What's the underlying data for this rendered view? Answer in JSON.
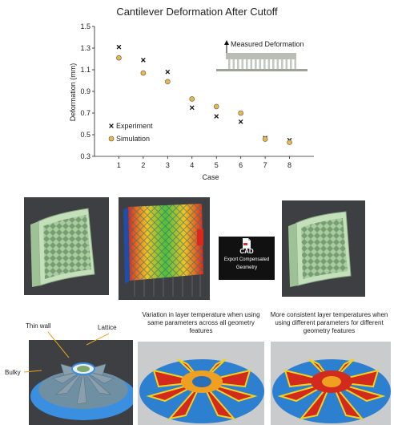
{
  "chart_data": {
    "type": "scatter",
    "title": "Cantilever Deformation After Cutoff",
    "xlabel": "Case",
    "ylabel": "Deformation (mm)",
    "x": [
      1,
      2,
      3,
      4,
      5,
      6,
      7,
      8
    ],
    "xticks": [
      "1",
      "2",
      "3",
      "4",
      "5",
      "6",
      "7",
      "8"
    ],
    "yticks": [
      "0.3",
      "0.5",
      "0.7",
      "0.9",
      "1.1",
      "1.3",
      "1.5"
    ],
    "ylim": [
      0.3,
      1.5
    ],
    "series": [
      {
        "name": "Experiment",
        "marker": "x",
        "color": "#111111",
        "values": [
          1.31,
          1.19,
          1.08,
          0.75,
          0.67,
          0.62,
          0.47,
          0.45
        ]
      },
      {
        "name": "Simulation",
        "marker": "circle",
        "color": "#E8B84A",
        "values": [
          1.21,
          1.07,
          0.99,
          0.83,
          0.76,
          0.7,
          0.46,
          0.43
        ]
      }
    ],
    "legend_position": "bottom-left",
    "annotation": "Measured Deformation"
  },
  "cad_badge": {
    "label": "CAD",
    "caption_line1": "Export Compensated",
    "caption_line2": "Geometry"
  },
  "bottom_panels": {
    "left_labels": {
      "thin_wall": "Thin wall",
      "lattice": "Lattice",
      "bulky": "Bulky"
    },
    "middle_caption": "Variation in layer temperature when using same parameters across all geometry features",
    "right_caption": "More consistent layer temperatures when using different parameters for different geometry features"
  },
  "colors": {
    "dark_bg": "#3d3f42",
    "part_green": "#b8d8b0",
    "simulation_marker": "#E8B84A"
  }
}
